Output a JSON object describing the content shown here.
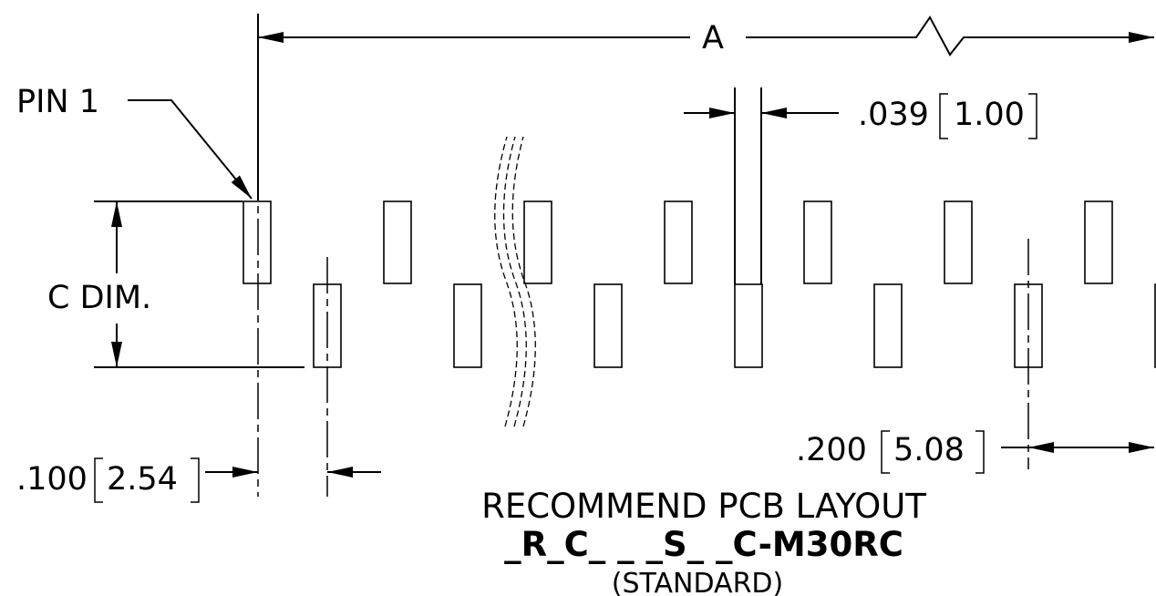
{
  "labels": {
    "pin1": "PIN 1",
    "dim_a": "A",
    "dim_c": "C DIM.",
    "pad_width_in": ".039",
    "pad_width_mm": "1.00",
    "pitch_in": ".100",
    "pitch_mm": "2.54",
    "row_pitch_in": ".200",
    "row_pitch_mm": "5.08"
  },
  "title": {
    "line1": "RECOMMEND PCB LAYOUT",
    "part_number": "_R_C_ _ _S_ _C-M30RC",
    "variant": "(STANDARD)"
  }
}
